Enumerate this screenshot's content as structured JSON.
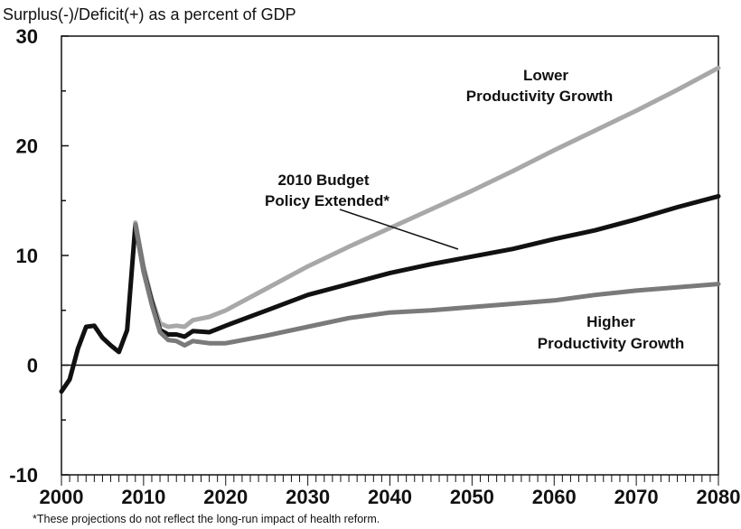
{
  "chart_data": {
    "type": "line",
    "title": "",
    "ylabel": "Surplus(-)/Deficit(+) as a percent of GDP",
    "xlabel": "",
    "xlim": [
      2000,
      2080
    ],
    "ylim": [
      -10,
      30
    ],
    "x_ticks": [
      "2000",
      "2010",
      "2020",
      "2030",
      "2040",
      "2050",
      "2060",
      "2070",
      "2080"
    ],
    "y_ticks": [
      "-10",
      "0",
      "10",
      "20",
      "30"
    ],
    "grid": false,
    "legend": "none",
    "series": [
      {
        "name": "Lower Productivity Growth",
        "color": "#a8a8a8",
        "x": [
          2009,
          2010,
          2011,
          2012,
          2013,
          2014,
          2015,
          2016,
          2018,
          2020,
          2025,
          2030,
          2035,
          2040,
          2045,
          2050,
          2055,
          2060,
          2065,
          2070,
          2075,
          2080
        ],
        "y": [
          13.0,
          9.0,
          6.0,
          3.8,
          3.5,
          3.6,
          3.5,
          4.1,
          4.4,
          5.0,
          7.0,
          9.0,
          10.8,
          12.5,
          14.2,
          15.9,
          17.7,
          19.6,
          21.4,
          23.2,
          25.1,
          27.1
        ]
      },
      {
        "name": "2010 Budget Policy Extended*",
        "color": "#111111",
        "x": [
          2000,
          2001,
          2002,
          2003,
          2004,
          2005,
          2006,
          2007,
          2008,
          2009,
          2010,
          2011,
          2012,
          2013,
          2014,
          2015,
          2016,
          2018,
          2020,
          2025,
          2030,
          2035,
          2040,
          2045,
          2050,
          2055,
          2060,
          2065,
          2070,
          2075,
          2080
        ],
        "y": [
          -2.4,
          -1.3,
          1.5,
          3.5,
          3.6,
          2.5,
          1.8,
          1.2,
          3.2,
          12.8,
          8.6,
          5.8,
          3.2,
          2.8,
          2.8,
          2.6,
          3.1,
          3.0,
          3.6,
          5.0,
          6.4,
          7.4,
          8.4,
          9.2,
          9.9,
          10.6,
          11.5,
          12.3,
          13.3,
          14.4,
          15.4
        ]
      },
      {
        "name": "Higher Productivity Growth",
        "color": "#7a7a7a",
        "x": [
          2009,
          2010,
          2011,
          2012,
          2013,
          2014,
          2015,
          2016,
          2018,
          2020,
          2025,
          2030,
          2035,
          2040,
          2045,
          2050,
          2055,
          2060,
          2065,
          2070,
          2075,
          2080
        ],
        "y": [
          12.8,
          8.5,
          5.5,
          3.0,
          2.3,
          2.2,
          1.8,
          2.2,
          2.0,
          2.0,
          2.7,
          3.5,
          4.3,
          4.8,
          5.0,
          5.3,
          5.6,
          5.9,
          6.4,
          6.8,
          7.1,
          7.4
        ]
      }
    ],
    "annotations": {
      "lower_line1": "Lower",
      "lower_line2": "Productivity Growth",
      "budget_line1": "2010 Budget",
      "budget_line2": "Policy Extended*",
      "higher_line1": "Higher",
      "higher_line2": "Productivity Growth"
    },
    "footnote": "*These projections do not reflect the long-run impact of health reform."
  }
}
